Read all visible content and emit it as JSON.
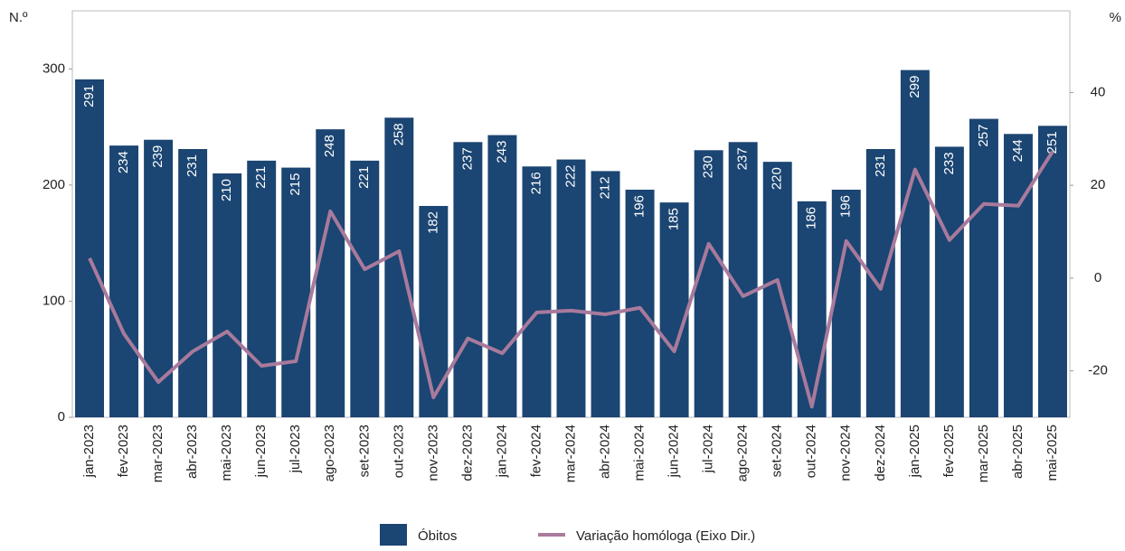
{
  "chart_data": {
    "type": "bar_line",
    "y_label": "N.º",
    "y2_label": "%",
    "categories": [
      "jan-2023",
      "fev-2023",
      "mar-2023",
      "abr-2023",
      "mai-2023",
      "jun-2023",
      "jul-2023",
      "ago-2023",
      "set-2023",
      "out-2023",
      "nov-2023",
      "dez-2023",
      "jan-2024",
      "fev-2024",
      "mar-2024",
      "abr-2024",
      "mai-2024",
      "jun-2024",
      "jul-2024",
      "ago-2024",
      "set-2024",
      "out-2024",
      "nov-2024",
      "dez-2024",
      "jan-2025",
      "fev-2025",
      "mar-2025",
      "abr-2025",
      "mai-2025"
    ],
    "series": [
      {
        "name": "Óbitos",
        "color": "#1b4572",
        "type": "bar",
        "values": [
          291,
          234,
          239,
          231,
          210,
          221,
          215,
          248,
          221,
          258,
          182,
          237,
          243,
          216,
          222,
          212,
          196,
          185,
          230,
          237,
          220,
          186,
          196,
          231,
          299,
          233,
          257,
          244,
          251
        ]
      },
      {
        "name": "Variação homóloga (Eixo Dir.)",
        "color": "#a87a9c",
        "type": "line",
        "axis": "y2",
        "values": [
          4.3,
          -12,
          -22.4,
          -15.8,
          -11.5,
          -18.9,
          -17.9,
          14.4,
          1.9,
          5.8,
          -25.7,
          -13,
          -16.2,
          -7.4,
          -7,
          -7.8,
          -6.4,
          -15.8,
          7.4,
          -3.9,
          -0.4,
          -27.7,
          8,
          -2.3,
          23.4,
          8.2,
          16,
          15.6,
          27.3
        ]
      }
    ],
    "ylim": [
      0,
      350
    ],
    "yticks": [
      0,
      100,
      200,
      300
    ],
    "y2lim": [
      -30,
      57.6
    ],
    "y2ticks": [
      -20,
      0,
      20,
      40
    ]
  }
}
